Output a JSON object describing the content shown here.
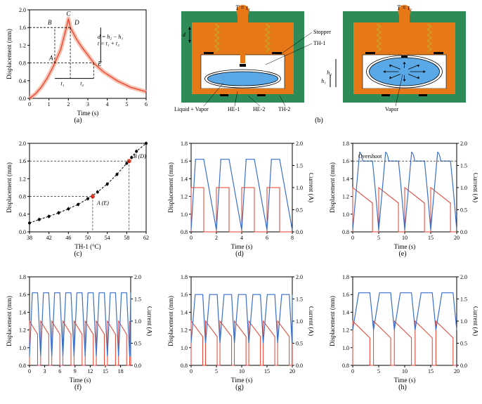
{
  "global": {
    "font_family": "Times New Roman",
    "line_color_red": "#e53e2e",
    "line_color_blue": "#3b6fc9",
    "line_color_black": "#000000",
    "background": "#ffffff",
    "axis_color": "#000000",
    "dash_pattern": "3,2",
    "label_fontsize": 9,
    "tick_fontsize": 8,
    "caption_fontsize": 10
  },
  "panel_a": {
    "caption": "(a)",
    "type": "line",
    "xlabel": "Time (s)",
    "ylabel": "Displacement (mm)",
    "xlim": [
      0,
      6
    ],
    "xtick_step": 1,
    "ylim": [
      0,
      2.0
    ],
    "ytick_step": 0.4,
    "curve_color": "#e53e2e",
    "curve_width": 1.2,
    "curve": [
      [
        0,
        0.0
      ],
      [
        0.3,
        0.1
      ],
      [
        0.6,
        0.25
      ],
      [
        0.9,
        0.45
      ],
      [
        1.2,
        0.7
      ],
      [
        1.3,
        0.8
      ],
      [
        1.6,
        1.1
      ],
      [
        1.9,
        1.6
      ],
      [
        2.0,
        1.8
      ],
      [
        2.1,
        1.6
      ],
      [
        2.4,
        1.35
      ],
      [
        2.7,
        1.15
      ],
      [
        3.0,
        0.98
      ],
      [
        3.3,
        0.8
      ],
      [
        3.8,
        0.6
      ],
      [
        4.5,
        0.4
      ],
      [
        5.2,
        0.25
      ],
      [
        6.0,
        0.15
      ]
    ],
    "band_color": "#f5a48a",
    "band_width": 6,
    "markers": {
      "A": {
        "t": 1.3,
        "d": 0.8,
        "label": "A"
      },
      "B": {
        "t": 1.3,
        "d": 1.6,
        "label": "B"
      },
      "C": {
        "t": 2.0,
        "d": 1.8,
        "label": "C"
      },
      "D": {
        "t": 2.1,
        "d": 1.6,
        "label": "D"
      },
      "E": {
        "t": 3.3,
        "d": 0.8,
        "label": "E"
      }
    },
    "annot_lines_color": "#000000",
    "annot_text": [
      "d = h₂ − h₁",
      "t = t₁ + t₂"
    ],
    "interval_labels": {
      "t1": "t₁",
      "t2": "t₂"
    }
  },
  "panel_b": {
    "caption": "(b)",
    "type": "diagram",
    "housing_color": "#2e8b57",
    "actuator_color": "#e67817",
    "spring_color": "#c9a227",
    "bellows_outline": "#000000",
    "liquid_color": "#5aa9e6",
    "arrow_color": "#000000",
    "labels": {
      "T1": "T = t₁",
      "T2": "T = t₂",
      "stopper": "Stopper",
      "th1": "TH-1",
      "liquid_vapor": "Liquid + Vapor",
      "he1": "HE-1",
      "he2": "HE-2",
      "th2": "TH-2",
      "vapor": "Vapor",
      "d": "d",
      "h1": "h₁",
      "h2": "h₂"
    }
  },
  "panel_c": {
    "caption": "(c)",
    "type": "scatter-line",
    "xlabel": "TH-1 (°C)",
    "ylabel": "Displacement (mm)",
    "xlim": [
      38,
      62
    ],
    "xtick_step": 4,
    "ylim": [
      0,
      2.0
    ],
    "ytick_step": 0.4,
    "fit_color": "#000000",
    "fit_dash": "3,2",
    "points_color": "#000000",
    "marker_size": 2,
    "points": [
      [
        38,
        0.2
      ],
      [
        40,
        0.28
      ],
      [
        42,
        0.35
      ],
      [
        44,
        0.43
      ],
      [
        46,
        0.52
      ],
      [
        48,
        0.62
      ],
      [
        50,
        0.75
      ],
      [
        51,
        0.82
      ],
      [
        52,
        0.9
      ],
      [
        54,
        1.08
      ],
      [
        56,
        1.3
      ],
      [
        58,
        1.55
      ],
      [
        59,
        1.68
      ],
      [
        60,
        1.82
      ],
      [
        62,
        2.0
      ]
    ],
    "highlight_color": "#e53e2e",
    "highlight_points": {
      "A_E": {
        "x": 51,
        "y": 0.8,
        "label": "A (E)"
      },
      "B_D": {
        "x": 58.5,
        "y": 1.6,
        "label": "B (D)"
      }
    }
  },
  "panel_d": {
    "caption": "(d)",
    "type": "dual-axis-line",
    "xlabel": "Time (s)",
    "ylabel_left": "Displacement (mm)",
    "ylabel_right": "Current (A)",
    "xlim": [
      0,
      8
    ],
    "xtick_step": 2,
    "ylim_left": [
      0.8,
      1.8
    ],
    "ytick_left": [
      0.8,
      1.0,
      1.2,
      1.4,
      1.6,
      1.8
    ],
    "ylim_right": [
      0,
      2
    ],
    "ytick_right": [
      0,
      0.5,
      1.0,
      1.5,
      2.0
    ],
    "disp_color": "#3b6fc9",
    "curr_color": "#e53e2e",
    "period": 2.0,
    "duty_on": 1.0,
    "current_high": 1.0,
    "current_low": 0.0,
    "disp_peak": 1.62,
    "disp_trough": 0.82
  },
  "panel_e": {
    "caption": "(e)",
    "type": "dual-axis-line",
    "xlabel": "Time (s)",
    "ylabel_left": "Displacement (mm)",
    "ylabel_right": "Current (A)",
    "xlim": [
      0,
      20
    ],
    "xtick_step": 5,
    "ylim_left": [
      0.8,
      1.8
    ],
    "ytick_left": [
      0.8,
      1.0,
      1.2,
      1.4,
      1.6,
      1.8
    ],
    "ylim_right": [
      0,
      2
    ],
    "ytick_right": [
      0,
      0.5,
      1.0,
      1.5,
      2.0
    ],
    "disp_color": "#3b6fc9",
    "curr_color": "#e53e2e",
    "period": 5.0,
    "duty_on": 3.8,
    "current_high": 1.0,
    "current_decay_to": 0.65,
    "disp_peak": 1.7,
    "disp_hold": 1.6,
    "disp_trough": 0.82,
    "overshoot_label": "Overshoot",
    "overshoot_line_y": 1.6
  },
  "panel_f": {
    "caption": "(f)",
    "type": "dual-axis-line",
    "xlabel": "Time (s)",
    "ylabel_left": "Displacement (mm)",
    "ylabel_right": "Current (A)",
    "xlim": [
      0,
      20
    ],
    "xtick_step": 3,
    "ylim_left": [
      0.8,
      1.8
    ],
    "ytick_left": [
      0.8,
      1.0,
      1.2,
      1.4,
      1.6,
      1.8
    ],
    "ylim_right": [
      0,
      2
    ],
    "ytick_right": [
      0,
      0.5,
      1.0,
      1.5,
      2.0
    ],
    "disp_color": "#3b6fc9",
    "curr_color": "#e53e2e",
    "period": 2.2,
    "duty_on": 1.6,
    "current_high": 1.0,
    "current_decay_to": 0.7,
    "disp_peak": 1.62,
    "disp_trough": 0.9
  },
  "panel_g": {
    "caption": "(g)",
    "type": "dual-axis-line",
    "xlabel": "Time (s)",
    "ylabel_left": "Displacement (mm)",
    "ylabel_right": "Current (A)",
    "xlim": [
      0,
      20
    ],
    "xtick_step": 5,
    "ylim_left": [
      0.8,
      1.8
    ],
    "ytick_left": [
      0.8,
      1.0,
      1.2,
      1.4,
      1.6,
      1.8
    ],
    "ylim_right": [
      0,
      2
    ],
    "ytick_right": [
      0,
      0.5,
      1.0,
      1.5,
      2.0
    ],
    "disp_color": "#3b6fc9",
    "curr_color": "#e53e2e",
    "period": 2.85,
    "duty_on": 2.3,
    "current_high": 1.0,
    "current_decay_to": 0.65,
    "disp_peak": 1.6,
    "disp_trough": 1.05
  },
  "panel_h": {
    "caption": "(h)",
    "type": "dual-axis-line",
    "xlabel": "Time (s)",
    "ylabel_left": "Displacement (mm)",
    "ylabel_right": "Current (A)",
    "xlim": [
      0,
      20
    ],
    "xtick_step": 5,
    "ylim_left": [
      0.8,
      1.8
    ],
    "ytick_left": [
      0.8,
      1.0,
      1.2,
      1.4,
      1.6,
      1.8
    ],
    "ylim_right": [
      0,
      2
    ],
    "ytick_right": [
      0,
      0.5,
      1.0,
      1.5,
      2.0
    ],
    "disp_color": "#3b6fc9",
    "curr_color": "#e53e2e",
    "period": 4.0,
    "duty_on": 3.3,
    "current_high": 1.0,
    "current_decay_to": 0.62,
    "disp_peak": 1.62,
    "disp_trough": 1.2
  }
}
